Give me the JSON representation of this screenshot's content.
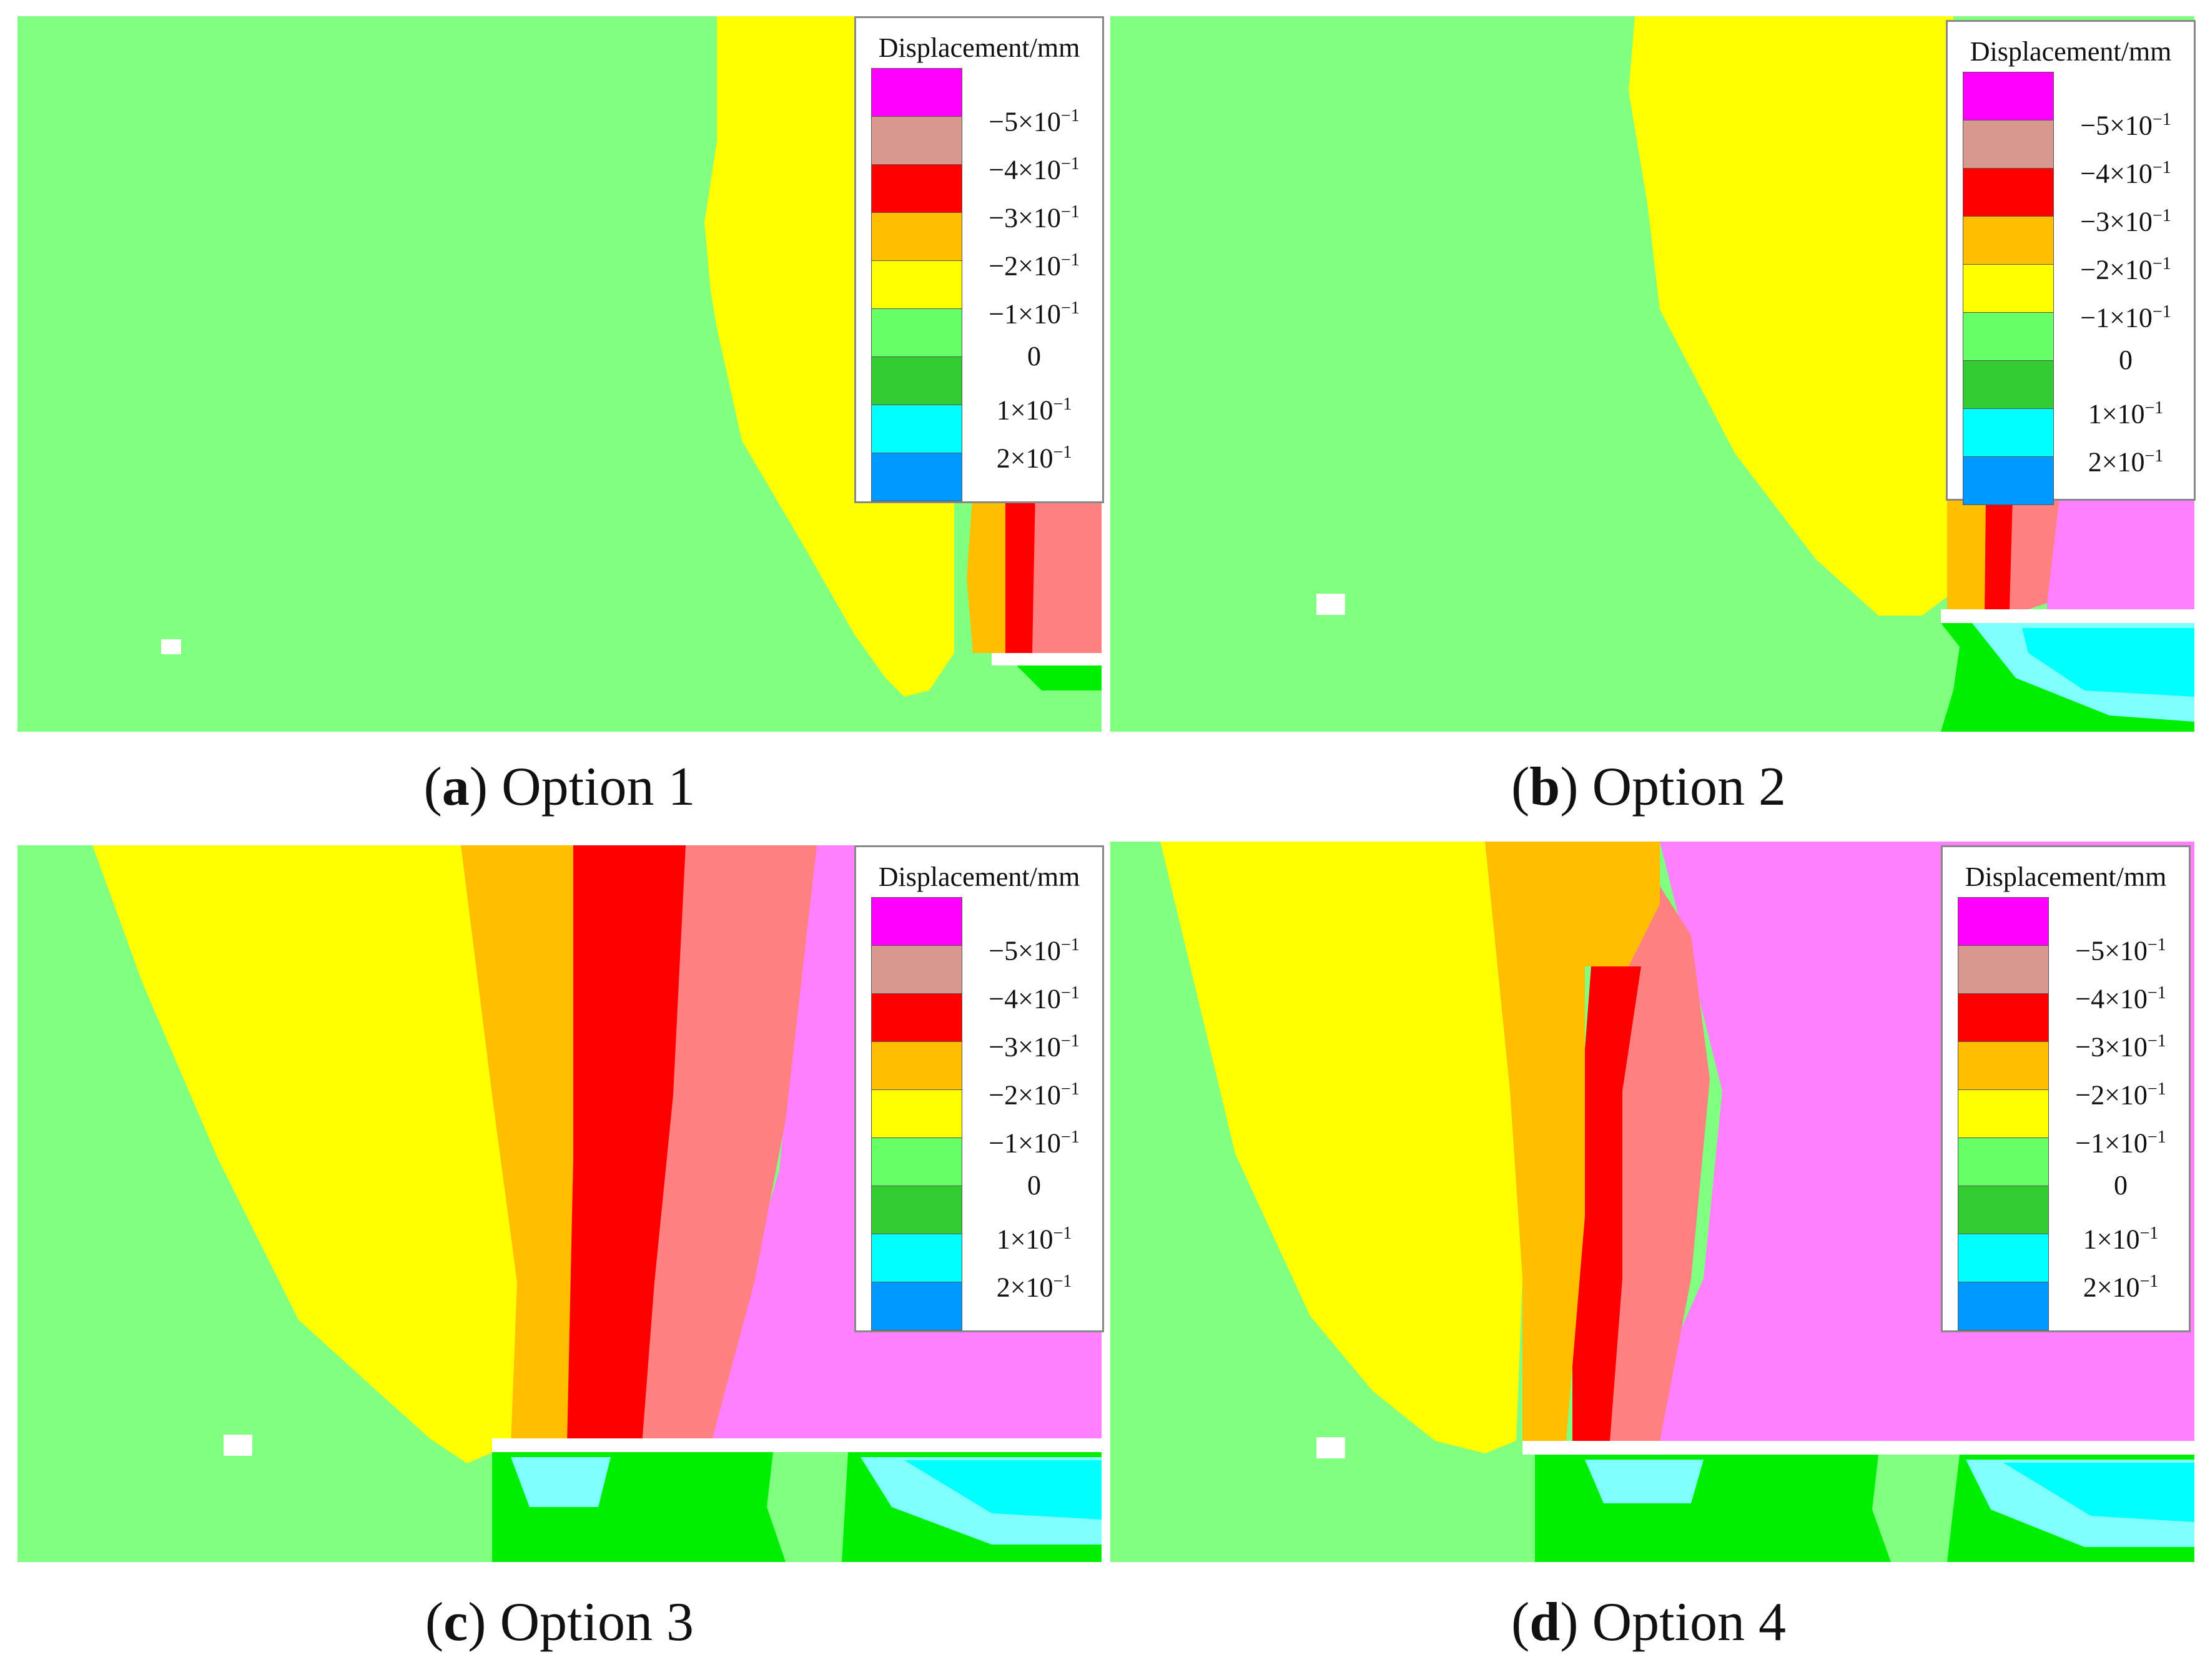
{
  "legend": {
    "title": "Displacement/mm",
    "colors": [
      "#ff00ff",
      "#d89890",
      "#ff0000",
      "#ffbf00",
      "#ffff00",
      "#66ff66",
      "#33cc33",
      "#00ffff",
      "#0099ff"
    ],
    "tick_labels": [
      {
        "base": "−5×10",
        "exp": "−1"
      },
      {
        "base": "−4×10",
        "exp": "−1"
      },
      {
        "base": "−3×10",
        "exp": "−1"
      },
      {
        "base": "−2×10",
        "exp": "−1"
      },
      {
        "base": "−1×10",
        "exp": "−1"
      },
      {
        "base": "0",
        "exp": ""
      },
      {
        "base": "1×10",
        "exp": "−1"
      },
      {
        "base": "2×10",
        "exp": "−1"
      }
    ]
  },
  "panels": [
    {
      "letter": "a",
      "caption": "Option 1"
    },
    {
      "letter": "b",
      "caption": "Option 2"
    },
    {
      "letter": "c",
      "caption": "Option 3"
    },
    {
      "letter": "d",
      "caption": "Option 4"
    }
  ],
  "contour_colors": {
    "background_green": "#80ff80",
    "yellow": "#ffff00",
    "orange": "#ffbf00",
    "red": "#ff0000",
    "salmon": "#ff8080",
    "magenta": "#ff80ff",
    "bright_green": "#00ee00",
    "cyan": "#00ffff",
    "light_cyan": "#80ffff"
  }
}
